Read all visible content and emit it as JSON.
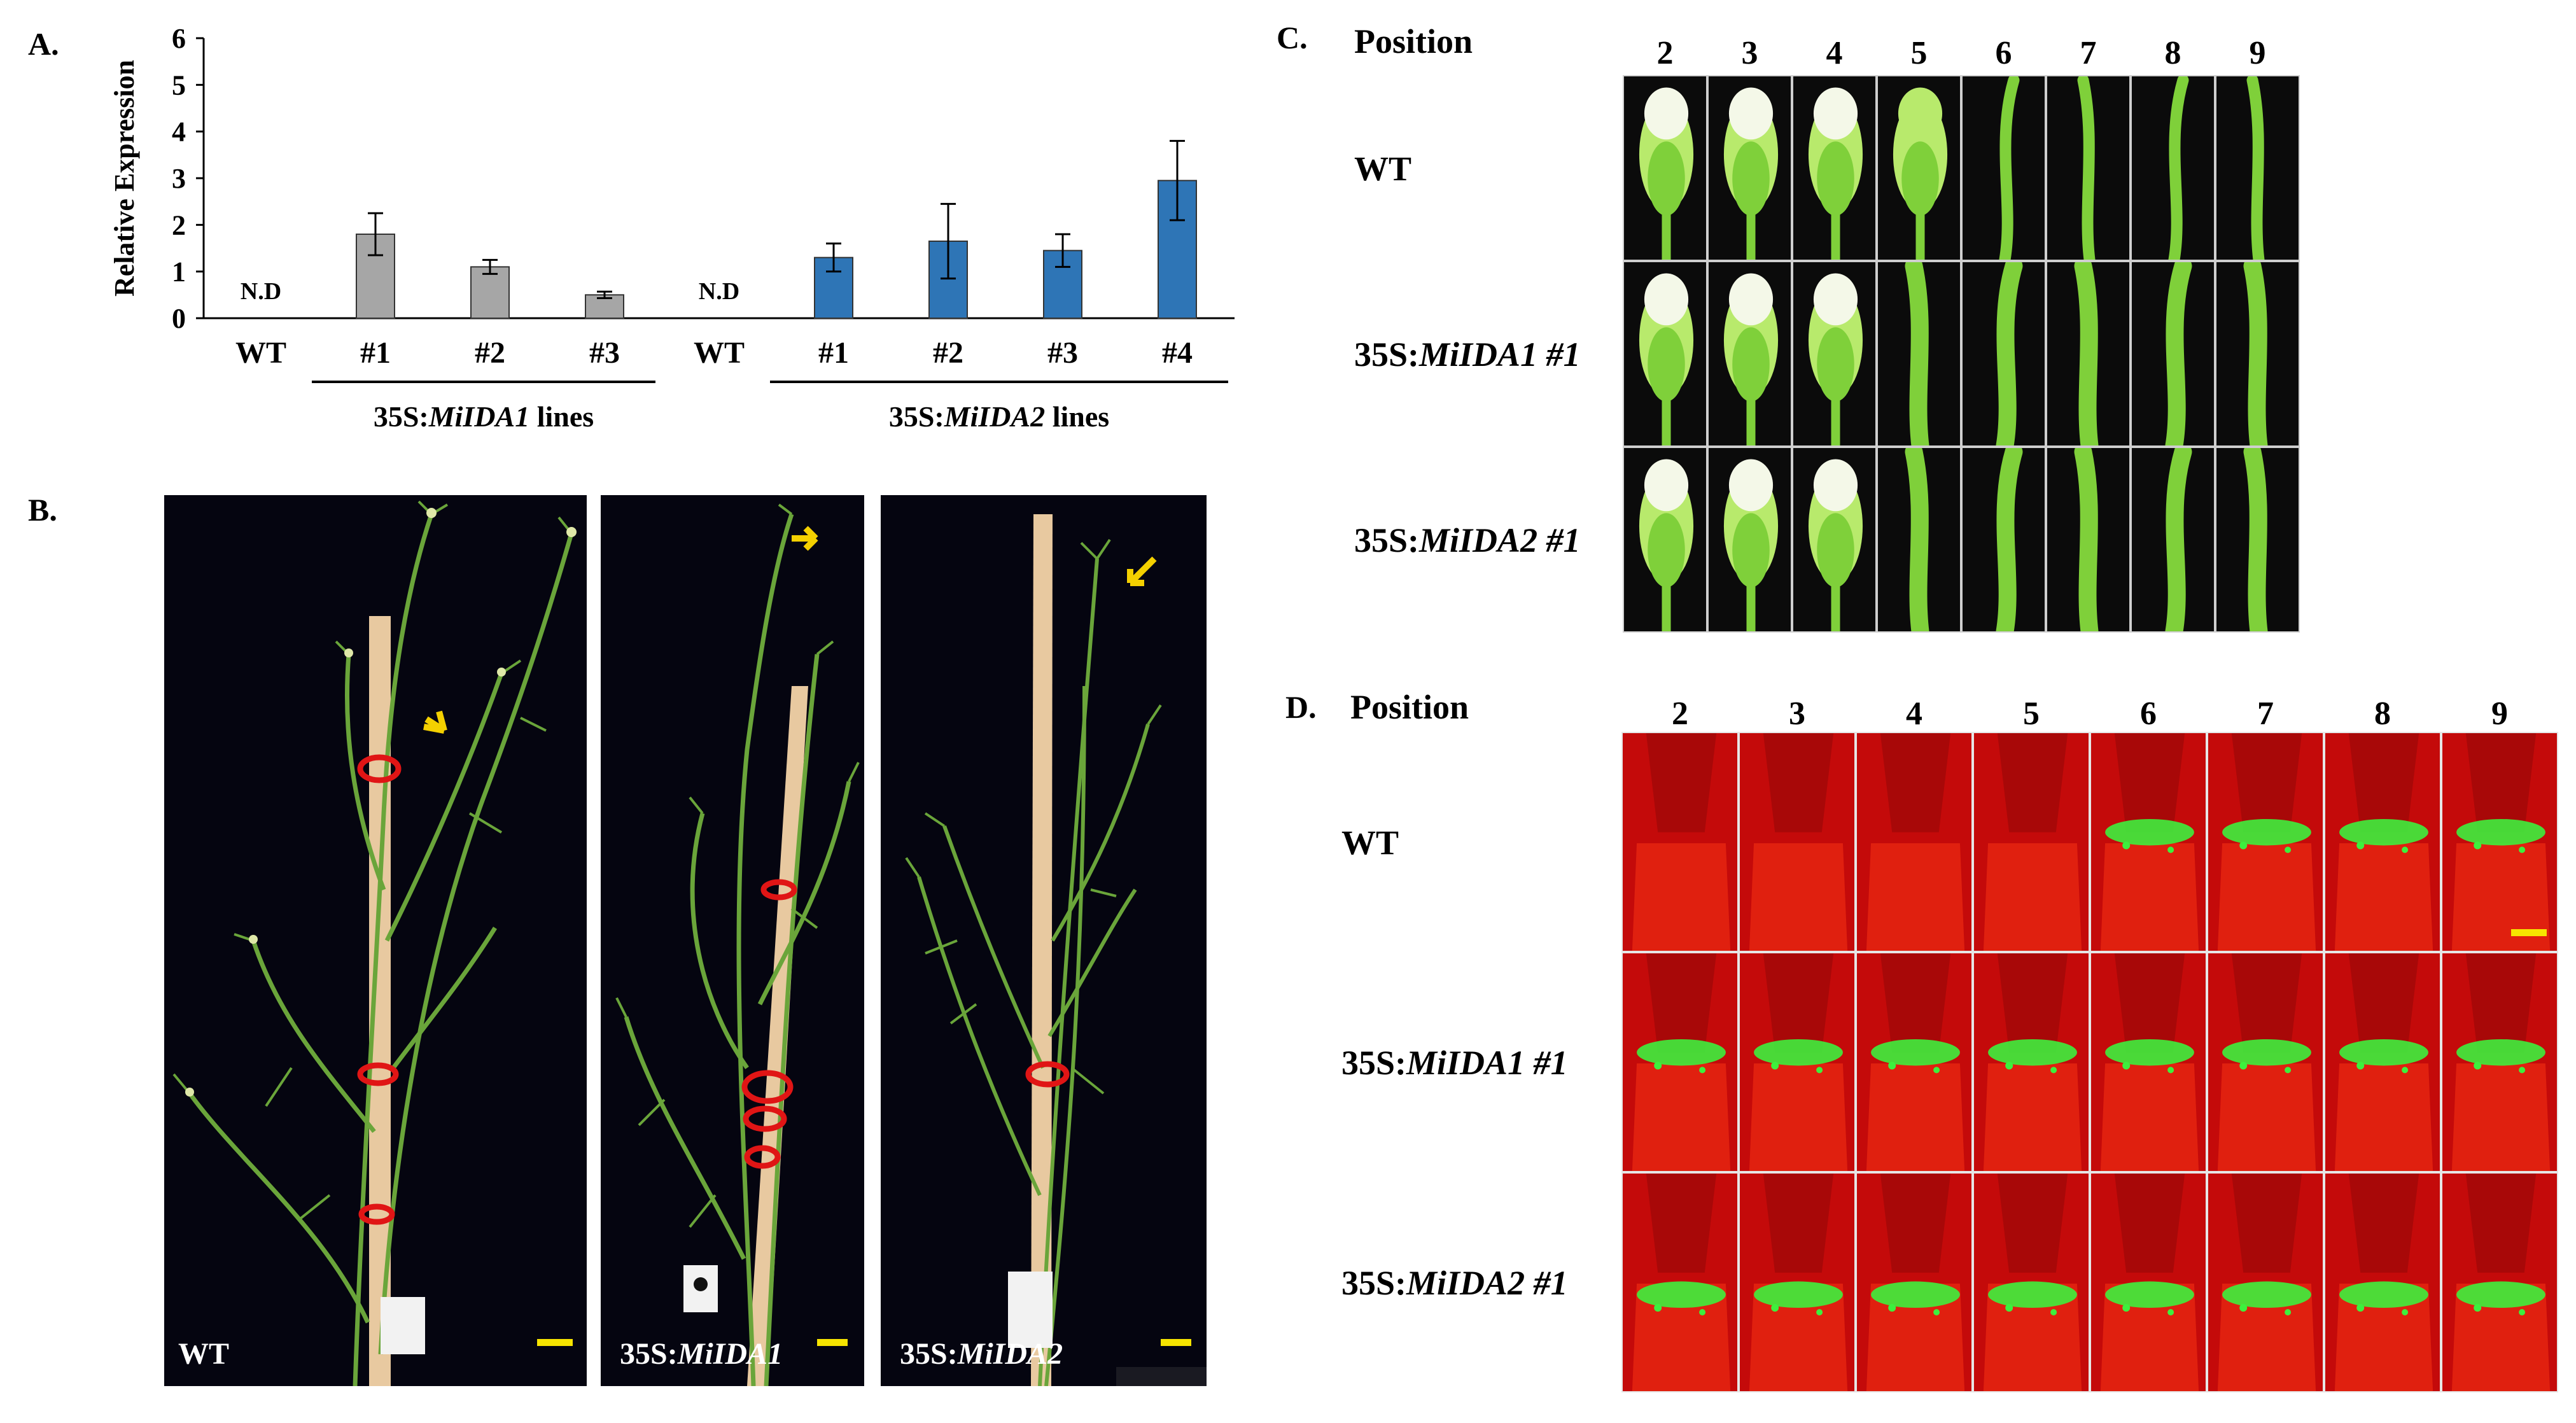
{
  "panelA": {
    "label": "A.",
    "chart_data": {
      "type": "bar",
      "ylabel": "Relative Expression",
      "ylim": [
        0,
        6
      ],
      "yticks": [
        "0",
        "1",
        "2",
        "3",
        "4",
        "5",
        "6"
      ],
      "categories": [
        "WT",
        "#1",
        "#2",
        "#3",
        "WT",
        "#1",
        "#2",
        "#3",
        "#4"
      ],
      "groups": [
        {
          "name": "35S:MiIDA1 lines",
          "prefix": "35S:",
          "gene": "MiIDA1",
          "suffix": " lines",
          "color": "#a6a6a6",
          "bars": [
            {
              "label": "WT",
              "value": null,
              "note": "N.D"
            },
            {
              "label": "#1",
              "value": 1.8,
              "err": 0.45
            },
            {
              "label": "#2",
              "value": 1.1,
              "err": 0.15
            },
            {
              "label": "#3",
              "value": 0.5,
              "err": 0.07
            }
          ]
        },
        {
          "name": "35S:MiIDA2 lines",
          "prefix": "35S:",
          "gene": "MiIDA2",
          "suffix": " lines",
          "color": "#2e75b6",
          "bars": [
            {
              "label": "WT",
              "value": null,
              "note": "N.D"
            },
            {
              "label": "#1",
              "value": 1.3,
              "err": 0.3
            },
            {
              "label": "#2",
              "value": 1.65,
              "err": 0.8
            },
            {
              "label": "#3",
              "value": 1.45,
              "err": 0.35
            },
            {
              "label": "#4",
              "value": 2.95,
              "err": 0.85
            }
          ]
        }
      ]
    }
  },
  "panelB": {
    "label": "B.",
    "photos": [
      {
        "caption": "WT",
        "gene": ""
      },
      {
        "caption": "35S:",
        "gene": "MiIDA1"
      },
      {
        "caption": "35S:",
        "gene": "MiIDA2"
      }
    ],
    "colors": {
      "background": "#050510",
      "stem": "#6aa53a",
      "stake": "#e8c9a0",
      "tie": "#e01515",
      "arrow": "#f4d000",
      "scalebar": "#f7e400"
    }
  },
  "panelC": {
    "label": "C.",
    "position_title": "Position",
    "positions": [
      "2",
      "3",
      "4",
      "5",
      "6",
      "7",
      "8",
      "9"
    ],
    "rows": [
      {
        "prefix": "WT",
        "gene": "",
        "suffix": ""
      },
      {
        "prefix": "35S:",
        "gene": "MiIDA1 #1",
        "suffix": ""
      },
      {
        "prefix": "35S:",
        "gene": "MiIDA2 #1",
        "suffix": ""
      }
    ]
  },
  "panelD": {
    "label": "D.",
    "position_title": "Position",
    "positions": [
      "2",
      "3",
      "4",
      "5",
      "6",
      "7",
      "8",
      "9"
    ],
    "rows": [
      {
        "prefix": "WT",
        "gene": ""
      },
      {
        "prefix": "35S:",
        "gene": "MiIDA1 #1"
      },
      {
        "prefix": "35S:",
        "gene": "MiIDA2 #1"
      }
    ],
    "colors": {
      "tissue": "#c40a0a",
      "fluorescence": "#3df03d"
    }
  }
}
